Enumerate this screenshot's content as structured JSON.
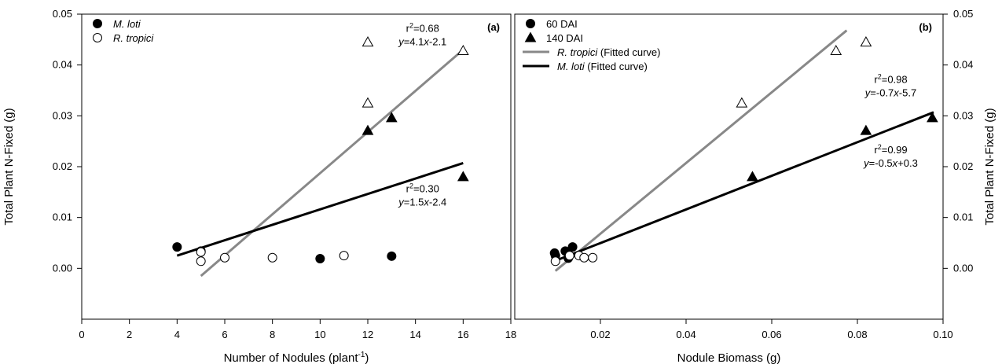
{
  "chart_data": [
    {
      "type": "scatter",
      "panel_label": "(a)",
      "xlabel": "Number of Nodules (plant",
      "xlabel_sup": "-1",
      "xlabel_suffix": ")",
      "ylabel": "Total Plant N-Fixed (g)",
      "xlim": [
        0,
        18
      ],
      "ylim": [
        -0.01,
        0.05
      ],
      "xticks": [
        "0",
        "2",
        "4",
        "6",
        "8",
        "10",
        "12",
        "14",
        "16",
        "18"
      ],
      "yticks": [
        "0.00",
        "0.01",
        "0.02",
        "0.03",
        "0.04",
        "0.05"
      ],
      "legend": {
        "position": "top-left",
        "items": [
          {
            "label": "M. loti",
            "italic": true,
            "marker": "filled-circle"
          },
          {
            "label": "R. tropici",
            "italic": true,
            "marker": "open-circle"
          }
        ]
      },
      "series": [
        {
          "name": "M. loti 60 DAI",
          "marker": "filled-circle",
          "points": [
            [
              4,
              0.0042
            ],
            [
              5,
              0.0034
            ],
            [
              10,
              0.0019
            ],
            [
              13,
              0.0024
            ]
          ]
        },
        {
          "name": "R. tropici 60 DAI",
          "marker": "open-circle",
          "points": [
            [
              5,
              0.0032
            ],
            [
              5,
              0.0014
            ],
            [
              6,
              0.0021
            ],
            [
              8,
              0.0021
            ],
            [
              11,
              0.0025
            ]
          ]
        },
        {
          "name": "M. loti 140 DAI",
          "marker": "filled-triangle",
          "points": [
            [
              12,
              0.0271
            ],
            [
              13,
              0.0296
            ],
            [
              16,
              0.018
            ]
          ]
        },
        {
          "name": "R. tropici 140 DAI",
          "marker": "open-triangle",
          "points": [
            [
              12,
              0.0325
            ],
            [
              12,
              0.0445
            ],
            [
              16,
              0.0428
            ]
          ]
        }
      ],
      "fits": [
        {
          "name": "R. tropici",
          "color": "#888888",
          "x": [
            5,
            16
          ],
          "y": [
            -0.0015,
            0.043
          ]
        },
        {
          "name": "M. loti",
          "color": "#000000",
          "x": [
            4,
            16
          ],
          "y": [
            0.0025,
            0.0207
          ]
        }
      ],
      "annotations": [
        {
          "r2": "0.68",
          "eq_pre": "y",
          "eq_post": "=4.1",
          "eq_var": "x",
          "eq_tail": "-2.1",
          "at": [
            14.3,
            0.0465
          ]
        },
        {
          "r2": "0.30",
          "eq_pre": "y",
          "eq_post": "=1.5",
          "eq_var": "x",
          "eq_tail": "-2.4",
          "at": [
            14.3,
            0.015
          ]
        }
      ]
    },
    {
      "type": "scatter",
      "panel_label": "(b)",
      "xlabel": "Nodule Biomass (g)",
      "ylabel": "Total Plant N-Fixed (g)",
      "xlim": [
        0,
        0.1
      ],
      "ylim": [
        -0.01,
        0.05
      ],
      "xticks": [
        "0.02",
        "0.04",
        "0.06",
        "0.08",
        "0.10"
      ],
      "yticks": [
        "0.00",
        "0.01",
        "0.02",
        "0.03",
        "0.04",
        "0.05"
      ],
      "legend": {
        "position": "top-left",
        "items": [
          {
            "label": "60 DAI",
            "marker": "filled-circle"
          },
          {
            "label": "140 DAI",
            "marker": "filled-triangle"
          },
          {
            "label": "R. tropici",
            "italic": true,
            "suffix": " (Fitted curve)",
            "marker": "gray-line"
          },
          {
            "label": "M. loti",
            "italic": true,
            "suffix": " (Fitted curve)",
            "marker": "black-line"
          }
        ]
      },
      "series": [
        {
          "name": "M. loti 60 DAI",
          "marker": "filled-circle",
          "points": [
            [
              0.0093,
              0.003
            ],
            [
              0.0095,
              0.0025
            ],
            [
              0.0118,
              0.0034
            ],
            [
              0.0135,
              0.0042
            ],
            [
              0.0125,
              0.002
            ]
          ]
        },
        {
          "name": "R. tropici 60 DAI",
          "marker": "open-circle",
          "points": [
            [
              0.0095,
              0.0014
            ],
            [
              0.0128,
              0.0025
            ],
            [
              0.015,
              0.0025
            ],
            [
              0.0162,
              0.0021
            ],
            [
              0.0182,
              0.0021
            ]
          ]
        },
        {
          "name": "M. loti 140 DAI",
          "marker": "filled-triangle",
          "points": [
            [
              0.0555,
              0.018
            ],
            [
              0.082,
              0.0271
            ],
            [
              0.0975,
              0.0296
            ]
          ]
        },
        {
          "name": "R. tropici 140 DAI",
          "marker": "open-triangle",
          "points": [
            [
              0.053,
              0.0325
            ],
            [
              0.075,
              0.0428
            ],
            [
              0.082,
              0.0445
            ]
          ]
        }
      ],
      "fits": [
        {
          "name": "R. tropici",
          "color": "#888888",
          "x": [
            0.0095,
            0.0775
          ],
          "y": [
            -0.0005,
            0.0468
          ]
        },
        {
          "name": "M. loti",
          "color": "#000000",
          "x": [
            0.0095,
            0.0978
          ],
          "y": [
            0.0015,
            0.0307
          ]
        }
      ],
      "annotations": [
        {
          "r2": "0.98",
          "eq_pre": "y",
          "eq_post": "=-0.7",
          "eq_var": "x",
          "eq_tail": "-5.7",
          "at": [
            0.0878,
            0.0365
          ]
        },
        {
          "r2": "0.99",
          "eq_pre": "y",
          "eq_post": "=-0.5",
          "eq_var": "x",
          "eq_tail": "+0.3",
          "at": [
            0.0878,
            0.0226
          ]
        }
      ]
    }
  ]
}
